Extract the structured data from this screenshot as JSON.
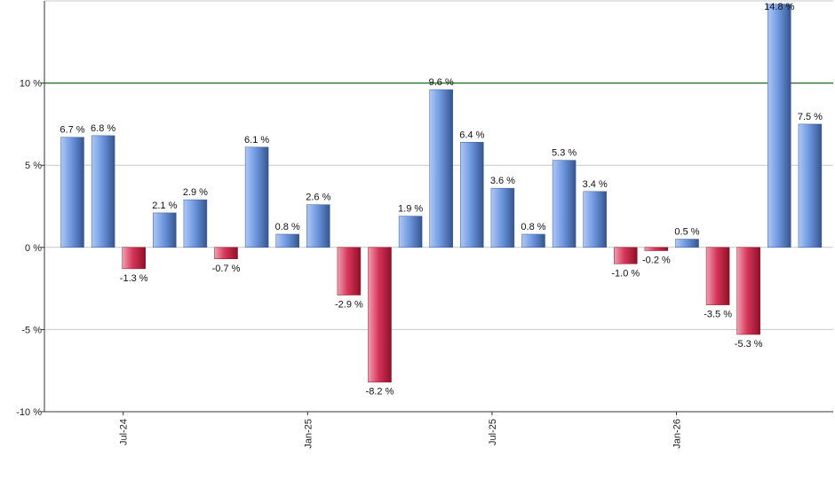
{
  "chart_data": {
    "type": "bar",
    "title": "",
    "xlabel": "",
    "ylabel": "",
    "ylim": [
      -10,
      15
    ],
    "yticks": [
      {
        "value": -10,
        "label": "-10 %"
      },
      {
        "value": -5,
        "label": "-5 %"
      },
      {
        "value": 0,
        "label": "0 %"
      },
      {
        "value": 5,
        "label": "5 %"
      },
      {
        "value": 10,
        "label": "10 %"
      }
    ],
    "xtick_labels": [
      {
        "index": 2,
        "label": "Jul-24"
      },
      {
        "index": 8,
        "label": "Jan-25"
      },
      {
        "index": 14,
        "label": "Jul-25"
      },
      {
        "index": 20,
        "label": "Jan-26"
      }
    ],
    "reference_line": {
      "value": 10,
      "color": "#1f6b1f"
    },
    "grid": true,
    "colors": {
      "positive": "#5b86d6",
      "negative": "#c8213f"
    },
    "values": [
      6.7,
      6.8,
      -1.3,
      2.1,
      2.9,
      -0.7,
      6.1,
      0.8,
      2.6,
      -2.9,
      -8.2,
      1.9,
      9.6,
      6.4,
      3.6,
      0.8,
      5.3,
      3.4,
      -1.0,
      -0.2,
      0.5,
      -3.5,
      -5.3,
      14.8,
      7.5
    ],
    "labels": [
      "6.7 %",
      "6.8 %",
      "-1.3 %",
      "2.1 %",
      "2.9 %",
      "-0.7 %",
      "6.1 %",
      "0.8 %",
      "2.6 %",
      "-2.9 %",
      "-8.2 %",
      "1.9 %",
      "9.6 %",
      "6.4 %",
      "3.6 %",
      "0.8 %",
      "5.3 %",
      "3.4 %",
      "-1.0 %",
      "-0.2 %",
      "0.5 %",
      "-3.5 %",
      "-5.3 %",
      "14.8 %",
      "7.5 %"
    ]
  }
}
